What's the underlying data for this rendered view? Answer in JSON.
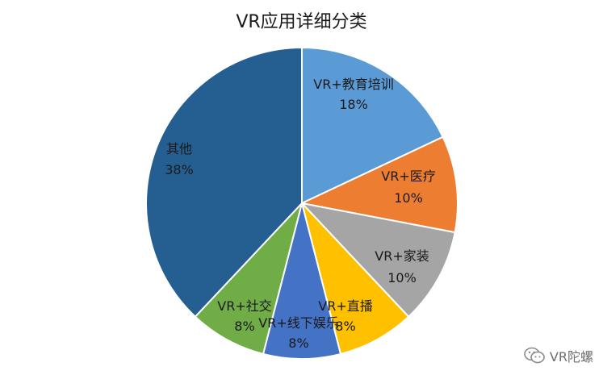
{
  "chart_data": {
    "type": "pie",
    "title": "VR应用详细分类",
    "slices": [
      {
        "label": "VR+教育培训",
        "value": 18,
        "value_label": "18%",
        "color": "#5b9bd5"
      },
      {
        "label": "VR+医疗",
        "value": 10,
        "value_label": "10%",
        "color": "#ed7d31"
      },
      {
        "label": "VR+家装",
        "value": 10,
        "value_label": "10%",
        "color": "#a5a5a5"
      },
      {
        "label": "VR+直播",
        "value": 8,
        "value_label": "8%",
        "color": "#ffc000"
      },
      {
        "label": "VR+线下娱乐",
        "value": 8,
        "value_label": "8%",
        "color": "#4472c4"
      },
      {
        "label": "VR+社交",
        "value": 8,
        "value_label": "8%",
        "color": "#70ad47"
      },
      {
        "label": "其他",
        "value": 38,
        "value_label": "38%",
        "color": "#255e91"
      }
    ],
    "start_angle": "12 o'clock",
    "direction": "clockwise",
    "legend": "none"
  },
  "watermark": {
    "text": "VR陀螺",
    "icon": "wechat-icon"
  }
}
